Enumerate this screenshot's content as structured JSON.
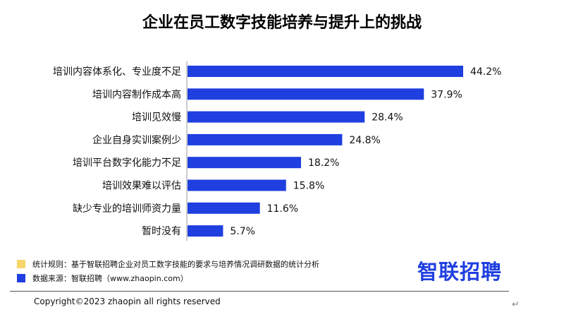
{
  "chart_data": {
    "type": "bar",
    "orientation": "horizontal",
    "title": "企业在员工数字技能培养与提升上的挑战",
    "categories": [
      "培训内容体系化、专业度不足",
      "培训内容制作成本高",
      "培训见效慢",
      "企业自身实训案例少",
      "培训平台数字化能力不足",
      "培训效果难以评估",
      "缺少专业的培训师资力量",
      "暂时没有"
    ],
    "values": [
      44.2,
      37.9,
      28.4,
      24.8,
      18.2,
      15.8,
      11.6,
      5.7
    ],
    "value_labels": [
      "44.2%",
      "37.9%",
      "28.4%",
      "24.8%",
      "18.2%",
      "15.8%",
      "11.6%",
      "5.7%"
    ],
    "unit": "%",
    "xlim": [
      0,
      44.2
    ],
    "grid": false,
    "bar_color": "#1f3fe0",
    "axis_color": "#999999"
  },
  "legend": {
    "items": [
      {
        "swatch_color": "#f6d66b",
        "text": "统计规则：基于智联招聘企业对员工数字技能的要求与培养情况调研数据的统计分析"
      },
      {
        "swatch_color": "#1f3fe0",
        "text": "数据来源：智联招聘（www.zhaopin.com）"
      }
    ]
  },
  "logo": {
    "text": "智联招聘",
    "color": "#1f3fe0"
  },
  "footer": {
    "copyright": "Copyright©2023 zhaopin all rights reserved"
  },
  "icons": {
    "return": "return-arrow-icon"
  }
}
